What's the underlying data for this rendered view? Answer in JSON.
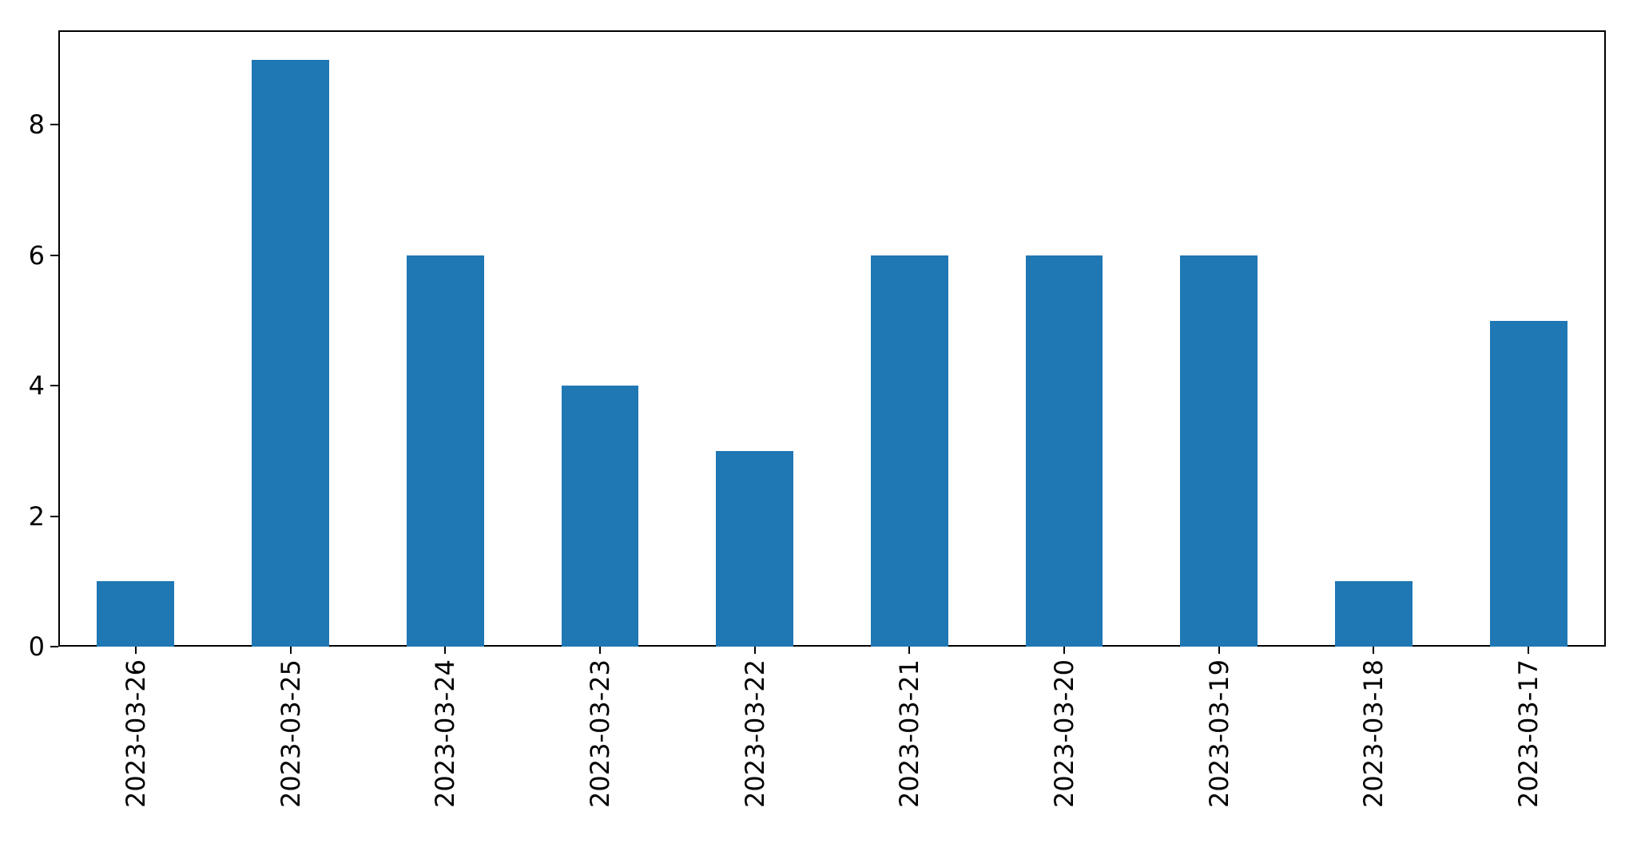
{
  "figure": {
    "background_color": "#ffffff",
    "axis_color": "#000000"
  },
  "chart_data": {
    "type": "bar",
    "title": "",
    "xlabel": "",
    "ylabel": "",
    "categories": [
      "2023-03-26",
      "2023-03-25",
      "2023-03-24",
      "2023-03-23",
      "2023-03-22",
      "2023-03-21",
      "2023-03-20",
      "2023-03-19",
      "2023-03-18",
      "2023-03-17"
    ],
    "values": [
      1,
      9,
      6,
      4,
      3,
      6,
      6,
      6,
      1,
      5
    ],
    "yticks": [
      0,
      2,
      4,
      6,
      8
    ],
    "ylim": [
      0,
      9.45
    ],
    "bar_color": "#1f77b4",
    "bar_rel_width": 0.5,
    "x_tick_rotation": 90,
    "grid": false,
    "legend": null
  }
}
